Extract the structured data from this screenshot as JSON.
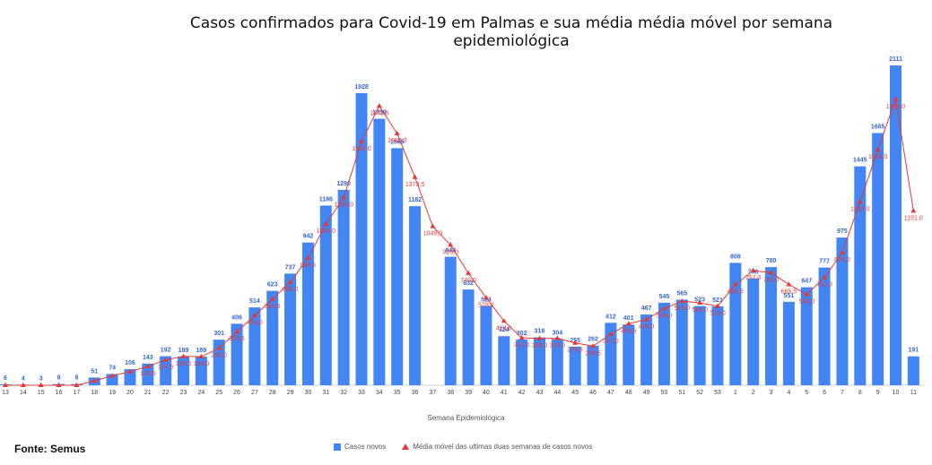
{
  "title": "Casos confirmados para Covid-19 em Palmas e sua média média móvel por semana epidemiológica",
  "source": "Fonte: Semus",
  "chart_data": {
    "type": "bar",
    "title": "Casos confirmados para Covid-19 em Palmas e sua média média móvel por semana epidemiológica",
    "xlabel": "Semana Epidemiológica",
    "ylabel": "",
    "ylim": [
      0,
      2200
    ],
    "grid": false,
    "legend_position": "bottom",
    "categories": [
      "13",
      "14",
      "15",
      "16",
      "17",
      "18",
      "19",
      "20",
      "21",
      "22",
      "23",
      "24",
      "25",
      "26",
      "27",
      "28",
      "29",
      "30",
      "31",
      "32",
      "33",
      "34",
      "35",
      "36",
      "37",
      "38",
      "39",
      "40",
      "41",
      "42",
      "43",
      "44",
      "45",
      "46",
      "47",
      "48",
      "49",
      "50",
      "51",
      "52",
      "53",
      "1",
      "2",
      "3",
      "4",
      "5",
      "6",
      "7",
      "8",
      "9",
      "10",
      "11"
    ],
    "series": [
      {
        "name": "Casos novos",
        "type": "bar",
        "color": "#4285f4",
        "values": [
          6,
          4,
          3,
          8,
          8,
          51,
          74,
          106,
          143,
          192,
          189,
          189,
          301,
          406,
          514,
          623,
          737,
          942,
          1186,
          1290,
          1928,
          1759,
          1565,
          1182,
          null,
          848,
          632,
          524,
          324,
          302,
          316,
          304,
          255,
          262,
          412,
          401,
          467,
          545,
          565,
          523,
          521,
          808,
          706,
          780,
          551,
          647,
          777,
          975,
          1445,
          1665,
          2111,
          191
        ]
      },
      {
        "name": "Média móvel das ultimas duas semanas de casos novos",
        "type": "line",
        "color": "#e53935",
        "values": [
          null,
          null,
          null,
          null,
          null,
          null,
          null,
          null,
          null,
          null,
          null,
          null,
          null,
          null,
          null,
          null,
          null,
          null,
          null,
          null,
          null,
          null,
          null,
          null,
          null,
          null,
          null,
          null,
          null,
          null,
          null,
          null,
          null,
          null,
          null,
          null,
          null,
          null,
          null,
          null,
          null,
          null,
          null,
          null,
          null,
          null,
          null,
          null,
          null,
          null,
          null,
          null
        ]
      }
    ],
    "avg_points": [
      {
        "i": 0,
        "y": 0
      },
      {
        "i": 1,
        "y": 0
      },
      {
        "i": 2,
        "y": 0
      },
      {
        "i": 3,
        "y": 0
      },
      {
        "i": 4,
        "y": 0
      },
      {
        "i": 5,
        "y": 29.5
      },
      {
        "i": 6,
        "y": 62.5
      },
      {
        "i": 7,
        "y": 90.0
      },
      {
        "i": 8,
        "y": 124.5
      },
      {
        "i": 9,
        "y": 167.5
      },
      {
        "i": 10,
        "y": 190.5
      },
      {
        "i": 11,
        "y": 189.0
      },
      {
        "i": 12,
        "y": 245.0
      },
      {
        "i": 13,
        "y": 353.5
      },
      {
        "i": 14,
        "y": 460.0
      },
      {
        "i": 15,
        "y": 568.5
      },
      {
        "i": 16,
        "y": 680.0
      },
      {
        "i": 17,
        "y": 839.5
      },
      {
        "i": 18,
        "y": 1064.0
      },
      {
        "i": 19,
        "y": 1238.0
      },
      {
        "i": 20,
        "y": 1609.0
      },
      {
        "i": 21,
        "y": 1843.5
      },
      {
        "i": 22,
        "y": 1662.0
      },
      {
        "i": 23,
        "y": 1373.5
      },
      {
        "i": 24,
        "y": 1049.0
      },
      {
        "i": 25,
        "y": 926.0
      },
      {
        "i": 26,
        "y": 740.0
      },
      {
        "i": 27,
        "y": 578.0
      },
      {
        "i": 28,
        "y": 424.0
      },
      {
        "i": 29,
        "y": 313.0
      },
      {
        "i": 30,
        "y": 309.0
      },
      {
        "i": 31,
        "y": 310.0
      },
      {
        "i": 32,
        "y": 279.5
      },
      {
        "i": 33,
        "y": 258.5
      },
      {
        "i": 34,
        "y": 337.0
      },
      {
        "i": 35,
        "y": 406.5
      },
      {
        "i": 36,
        "y": 434.0
      },
      {
        "i": 37,
        "y": 506.0
      },
      {
        "i": 38,
        "y": 555.0
      },
      {
        "i": 39,
        "y": 544.0
      },
      {
        "i": 40,
        "y": 522.0
      },
      {
        "i": 41,
        "y": 664.5
      },
      {
        "i": 42,
        "y": 757.0
      },
      {
        "i": 43,
        "y": 743.0
      },
      {
        "i": 44,
        "y": 665.5
      },
      {
        "i": 45,
        "y": 599.0
      },
      {
        "i": 46,
        "y": 712.0
      },
      {
        "i": 47,
        "y": 876.0
      },
      {
        "i": 48,
        "y": 1210.0
      },
      {
        "i": 49,
        "y": 1555.0
      },
      {
        "i": 50,
        "y": 1888.0
      },
      {
        "i": 51,
        "y": 1151.0
      }
    ],
    "bar_labels": [
      "6",
      "4",
      "3",
      "8",
      "8",
      "51",
      "74",
      "106",
      "143",
      "192",
      "189",
      "189",
      "301",
      "406",
      "514",
      "623",
      "737",
      "942",
      "1186",
      "1290",
      "1928",
      "1759",
      "1565",
      "1182",
      "",
      "848",
      "632",
      "524",
      "324",
      "302",
      "316",
      "304",
      "255",
      "262",
      "412",
      "401",
      "467",
      "545",
      "565",
      "523",
      "521",
      "808",
      "706",
      "780",
      "551",
      "647",
      "777",
      "975",
      "1445",
      "1665",
      "2111",
      "191"
    ],
    "avg_labels": [
      "",
      "",
      "",
      "",
      "",
      "",
      "",
      "",
      "124,5",
      "167,5",
      "190,5",
      "189,0",
      "245,0",
      "353,5",
      "460,0",
      "568,5",
      "680,0",
      "839,5",
      "1064,0",
      "1238,0",
      "1609,0",
      "1843,5",
      "1662,0",
      "1373,5",
      "1049,0",
      "926,0",
      "740,0",
      "578,0",
      "424,0",
      "313,0",
      "309,0",
      "310,0",
      "279,5",
      "258,5",
      "337,0",
      "406,5",
      "434,0",
      "506,0",
      "555,0",
      "544,0",
      "522,0",
      "664,5",
      "757,0",
      "743,0",
      "665,5",
      "599,0",
      "712,0",
      "876,0",
      "1210,0",
      "1555,0",
      "1888,0",
      "1151,0"
    ]
  },
  "legend": {
    "bars_label": "Casos novos",
    "line_label": "Média móvel das ultimas duas semanas de casos novos"
  }
}
